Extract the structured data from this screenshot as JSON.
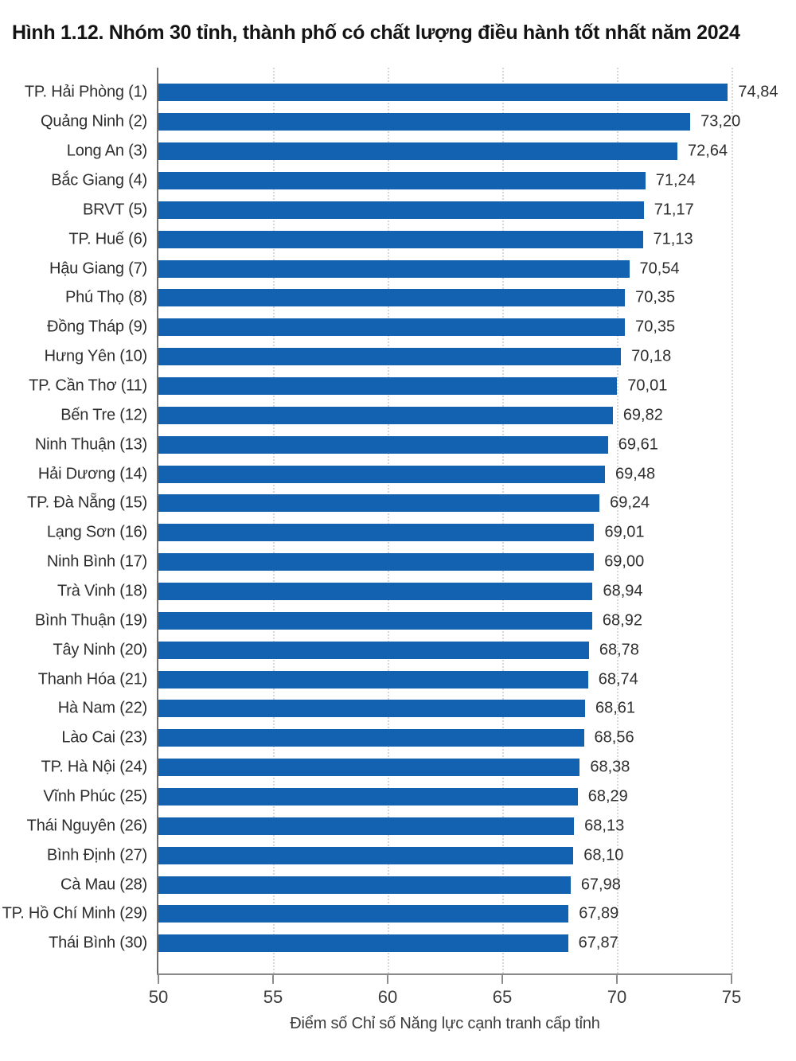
{
  "page": {
    "background": "#ffffff"
  },
  "chart_data": {
    "type": "bar",
    "orientation": "horizontal",
    "title": "Hình 1.12. Nhóm 30 tỉnh, thành phố có chất lượng điều hành tốt nhất năm 2024",
    "xlabel": "Điểm số Chỉ số Năng lực cạnh tranh cấp tỉnh",
    "xlim": [
      50,
      75
    ],
    "xticks": [
      "50",
      "55",
      "60",
      "65",
      "70",
      "75"
    ],
    "grid": "vertical-dotted-at-ticks",
    "legend": "none",
    "bar_color": "#1362b1",
    "categories": [
      "TP. Hải Phòng (1)",
      "Quảng Ninh (2)",
      "Long An (3)",
      "Bắc Giang (4)",
      "BRVT (5)",
      "TP. Huế (6)",
      "Hậu Giang (7)",
      "Phú Thọ (8)",
      "Đồng Tháp (9)",
      "Hưng Yên (10)",
      "TP. Cần Thơ (11)",
      "Bến Tre (12)",
      "Ninh Thuận (13)",
      "Hải Dương (14)",
      "TP. Đà Nẵng (15)",
      "Lạng Sơn (16)",
      "Ninh Bình (17)",
      "Trà Vinh (18)",
      "Bình Thuận (19)",
      "Tây Ninh (20)",
      "Thanh Hóa (21)",
      "Hà Nam (22)",
      "Lào Cai (23)",
      "TP. Hà Nội (24)",
      "Vĩnh Phúc (25)",
      "Thái Nguyên (26)",
      "Bình Định (27)",
      "Cà Mau (28)",
      "TP. Hồ Chí Minh (29)",
      "Thái Bình (30)"
    ],
    "values": [
      74.84,
      73.2,
      72.64,
      71.24,
      71.17,
      71.13,
      70.54,
      70.35,
      70.35,
      70.18,
      70.01,
      69.82,
      69.61,
      69.48,
      69.24,
      69.01,
      69.0,
      68.94,
      68.92,
      68.78,
      68.74,
      68.61,
      68.56,
      68.38,
      68.29,
      68.13,
      68.1,
      67.98,
      67.89,
      67.87
    ],
    "value_labels": [
      "74,84",
      "73,20",
      "72,64",
      "71,24",
      "71,17",
      "71,13",
      "70,54",
      "70,35",
      "70,35",
      "70,18",
      "70,01",
      "69,82",
      "69,61",
      "69,48",
      "69,24",
      "69,01",
      "69,00",
      "68,94",
      "68,92",
      "68,78",
      "68,74",
      "68,61",
      "68,56",
      "68,38",
      "68,29",
      "68,13",
      "68,10",
      "67,98",
      "67,89",
      "67,87"
    ]
  }
}
